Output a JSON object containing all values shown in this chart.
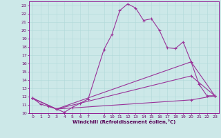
{
  "xlabel": "Windchill (Refroidissement éolien,°C)",
  "background_color": "#cce8e8",
  "line_color": "#993399",
  "xlim": [
    -0.5,
    23.5
  ],
  "ylim": [
    10,
    23.5
  ],
  "xticks": [
    0,
    1,
    2,
    3,
    4,
    5,
    6,
    7,
    9,
    10,
    11,
    12,
    13,
    14,
    15,
    16,
    17,
    18,
    19,
    20,
    21,
    22,
    23
  ],
  "yticks": [
    10,
    11,
    12,
    13,
    14,
    15,
    16,
    17,
    18,
    19,
    20,
    21,
    22,
    23
  ],
  "line1_x": [
    0,
    1,
    2,
    3,
    4,
    5,
    6,
    7,
    9,
    10,
    11,
    12,
    13,
    14,
    15,
    16,
    17,
    18,
    19,
    20,
    21,
    22,
    23
  ],
  "line1_y": [
    11.8,
    11.1,
    10.8,
    10.5,
    10.1,
    10.7,
    11.2,
    11.7,
    17.7,
    19.5,
    22.4,
    23.2,
    22.7,
    21.2,
    21.4,
    20.0,
    17.9,
    17.8,
    18.6,
    16.2,
    13.5,
    12.1,
    12.1
  ],
  "line2_x": [
    0,
    3,
    20,
    23
  ],
  "line2_y": [
    11.8,
    10.5,
    16.2,
    12.1
  ],
  "line3_x": [
    0,
    3,
    20,
    23
  ],
  "line3_y": [
    11.8,
    10.5,
    14.5,
    12.1
  ],
  "line4_x": [
    0,
    3,
    20,
    23
  ],
  "line4_y": [
    11.8,
    10.5,
    11.6,
    12.1
  ]
}
